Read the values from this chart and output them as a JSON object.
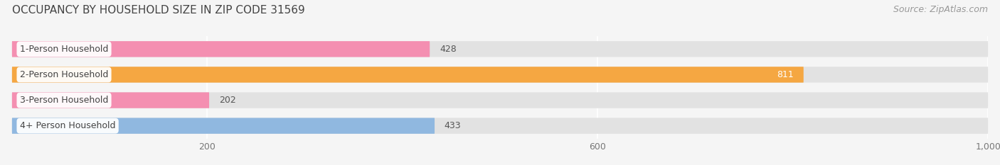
{
  "title": "OCCUPANCY BY HOUSEHOLD SIZE IN ZIP CODE 31569",
  "source": "Source: ZipAtlas.com",
  "categories": [
    "1-Person Household",
    "2-Person Household",
    "3-Person Household",
    "4+ Person Household"
  ],
  "values": [
    428,
    811,
    202,
    433
  ],
  "bar_colors": [
    "#f48fb1",
    "#f5a742",
    "#f48fb1",
    "#90b8e0"
  ],
  "label_colors": [
    "#555555",
    "#ffffff",
    "#555555",
    "#555555"
  ],
  "xlim": [
    0,
    1000
  ],
  "xticks": [
    200,
    600,
    1000
  ],
  "xtick_labels": [
    "200",
    "600",
    "1,000"
  ],
  "background_color": "#f5f5f5",
  "bar_bg_color": "#e8e8e8",
  "title_fontsize": 11,
  "source_fontsize": 9,
  "tick_fontsize": 9,
  "label_fontsize": 9,
  "category_fontsize": 9
}
